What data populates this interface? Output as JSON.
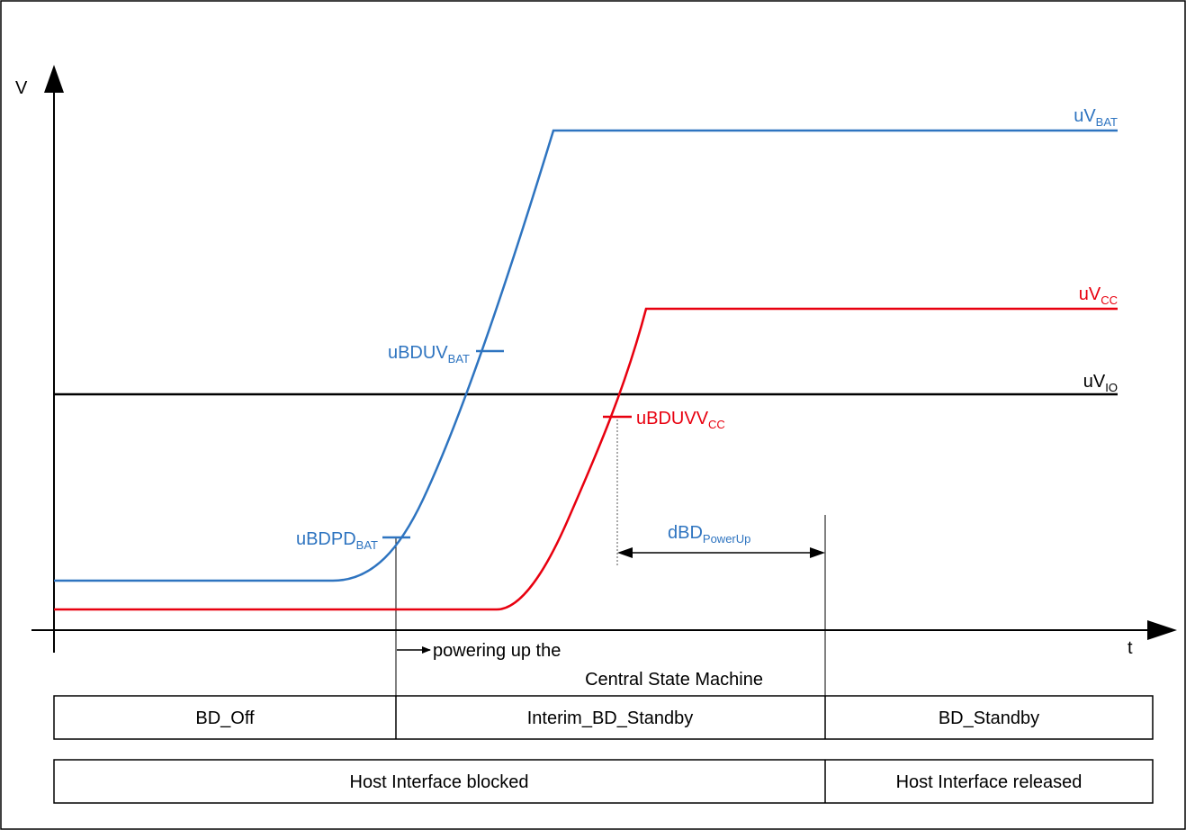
{
  "colors": {
    "battery": "#2e74c0",
    "vcc": "#e8000f",
    "vio": "#000000",
    "axis": "#000000"
  },
  "axes": {
    "y_label": "V",
    "x_label": "t"
  },
  "signals": {
    "vbat": {
      "base": "uV",
      "sub": "BAT"
    },
    "vcc": {
      "base": "uV",
      "sub": "CC"
    },
    "vio": {
      "base": "uV",
      "sub": "IO"
    }
  },
  "thresholds": {
    "uvbat": {
      "base": "uBDUV",
      "sub": "BAT"
    },
    "pdbat": {
      "base": "uBDPD",
      "sub": "BAT"
    },
    "uvvcc": {
      "base": "uBDUVV",
      "sub": "CC"
    }
  },
  "timing": {
    "base": "dBD",
    "sub": "PowerUp"
  },
  "annotation": {
    "line1": "powering up the",
    "line2": "Central State Machine"
  },
  "state_row": [
    "BD_Off",
    "Interim_BD_Standby",
    "BD_Standby"
  ],
  "host_row": [
    "Host Interface blocked",
    "Host Interface released"
  ]
}
